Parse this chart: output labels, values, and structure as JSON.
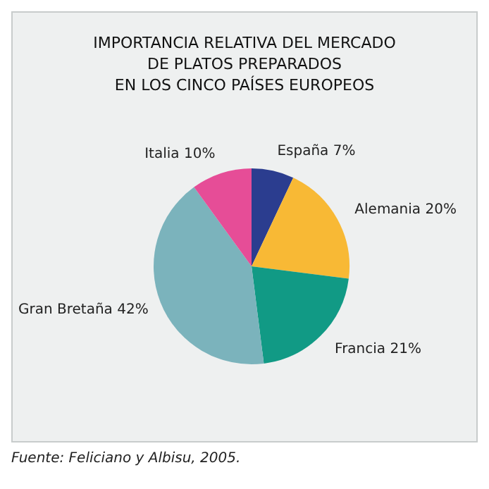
{
  "chart_data": {
    "type": "pie",
    "title": "IMPORTANCIA RELATIVA DEL MERCADO\nDE PLATOS PREPARADOS\nEN LOS CINCO PAÍSES EUROPEOS",
    "categories": [
      "España",
      "Alemania",
      "Francia",
      "Gran Bretaña",
      "Italia"
    ],
    "values": [
      7,
      20,
      21,
      42,
      10
    ],
    "value_labels": [
      "7%",
      "20%",
      "21%",
      "42%",
      "10%"
    ],
    "colors": [
      "#2b3d8f",
      "#f8b935",
      "#119a85",
      "#7bb3bc",
      "#e64d97"
    ],
    "annotations": [
      "Fuente: Feliciano y Albisu, 2005."
    ]
  }
}
